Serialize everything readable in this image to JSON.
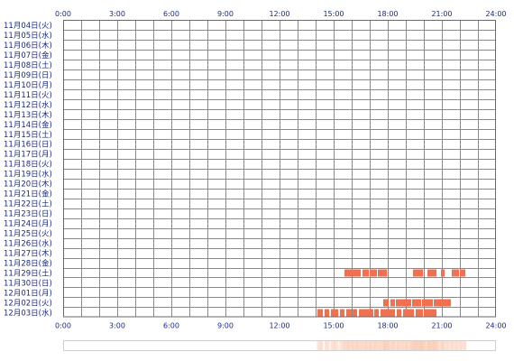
{
  "chart_data": {
    "type": "timeline",
    "title": "",
    "xlabel": "",
    "ylabel": "",
    "x_unit": "hour",
    "xlim": [
      0,
      24
    ],
    "x_ticks": [
      "0:00",
      "3:00",
      "6:00",
      "9:00",
      "12:00",
      "15:00",
      "18:00",
      "21:00",
      "24:00"
    ],
    "x_tick_positions": [
      0,
      3,
      6,
      9,
      12,
      15,
      18,
      21,
      24
    ],
    "grid": true,
    "bar_color": "#f07050",
    "density_color": "#f9c9b2",
    "rows": [
      {
        "label": "11月04日(火)",
        "intervals": []
      },
      {
        "label": "11月05日(水)",
        "intervals": []
      },
      {
        "label": "11月06日(木)",
        "intervals": []
      },
      {
        "label": "11月07日(金)",
        "intervals": []
      },
      {
        "label": "11月08日(土)",
        "intervals": []
      },
      {
        "label": "11月09日(日)",
        "intervals": []
      },
      {
        "label": "11月10日(月)",
        "intervals": []
      },
      {
        "label": "11月11日(火)",
        "intervals": []
      },
      {
        "label": "11月12日(水)",
        "intervals": []
      },
      {
        "label": "11月13日(木)",
        "intervals": []
      },
      {
        "label": "11月14日(金)",
        "intervals": []
      },
      {
        "label": "11月15日(土)",
        "intervals": []
      },
      {
        "label": "11月16日(日)",
        "intervals": []
      },
      {
        "label": "11月17日(月)",
        "intervals": []
      },
      {
        "label": "11月18日(火)",
        "intervals": []
      },
      {
        "label": "11月19日(水)",
        "intervals": []
      },
      {
        "label": "11月20日(木)",
        "intervals": []
      },
      {
        "label": "11月21日(金)",
        "intervals": []
      },
      {
        "label": "11月22日(土)",
        "intervals": []
      },
      {
        "label": "11月23日(日)",
        "intervals": []
      },
      {
        "label": "11月24日(月)",
        "intervals": []
      },
      {
        "label": "11月25日(火)",
        "intervals": []
      },
      {
        "label": "11月26日(水)",
        "intervals": []
      },
      {
        "label": "11月27日(木)",
        "intervals": []
      },
      {
        "label": "11月28日(金)",
        "intervals": []
      },
      {
        "label": "11月29日(土)",
        "intervals": [
          [
            15.6,
            16.5
          ],
          [
            16.6,
            16.95
          ],
          [
            17.0,
            17.4
          ],
          [
            17.45,
            17.95
          ],
          [
            19.4,
            19.95
          ],
          [
            20.2,
            20.7
          ],
          [
            20.95,
            21.15
          ],
          [
            21.55,
            21.95
          ],
          [
            22.0,
            22.3
          ]
        ]
      },
      {
        "label": "11月30日(日)",
        "intervals": []
      },
      {
        "label": "12月01日(月)",
        "intervals": []
      },
      {
        "label": "12月02日(火)",
        "intervals": [
          [
            17.75,
            18.05
          ],
          [
            18.15,
            18.4
          ],
          [
            18.45,
            19.3
          ],
          [
            19.35,
            19.85
          ],
          [
            19.9,
            20.5
          ],
          [
            20.55,
            21.5
          ]
        ]
      },
      {
        "label": "12月03日(水)",
        "intervals": [
          [
            14.1,
            14.4
          ],
          [
            14.5,
            14.75
          ],
          [
            14.85,
            15.25
          ],
          [
            15.35,
            15.6
          ],
          [
            15.7,
            16.0
          ],
          [
            16.05,
            16.3
          ],
          [
            16.4,
            17.2
          ],
          [
            17.25,
            17.5
          ],
          [
            17.6,
            18.4
          ],
          [
            18.5,
            18.75
          ],
          [
            18.85,
            19.45
          ],
          [
            19.55,
            19.95
          ],
          [
            20.0,
            20.7
          ]
        ]
      }
    ]
  }
}
